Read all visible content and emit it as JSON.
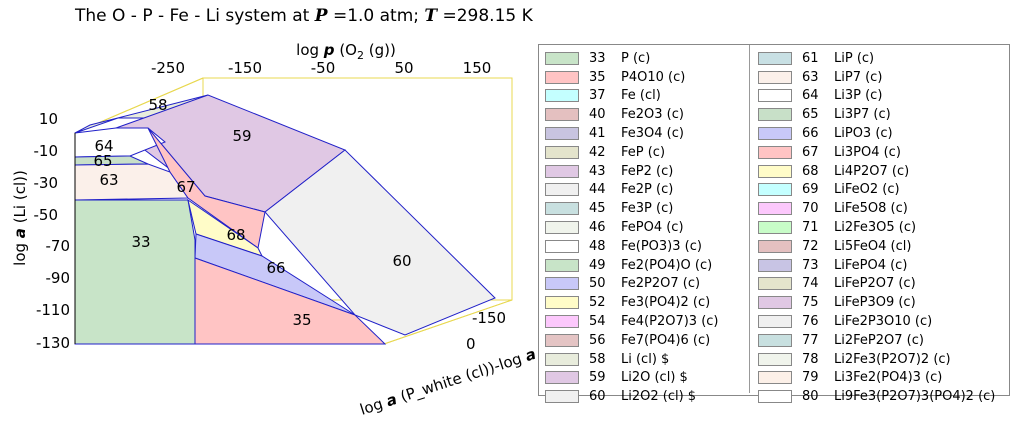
{
  "title": {
    "prefix": "The O - P - Fe - Li system at ",
    "p_symbol": "P",
    "p_value": " =1.0 atm; ",
    "t_symbol": "T",
    "t_value": " =298.15 K"
  },
  "axes": {
    "top_label": "log p (O2 (g))",
    "top_label_parts": {
      "a": "log ",
      "p": "p",
      "b": " (O",
      "sub": "2",
      "c": " (g))"
    },
    "top_ticks": [
      "-250",
      "-150",
      "-50",
      "50",
      "150"
    ],
    "left_label": "log a (Li (cl))",
    "left_ticks": [
      "10",
      "-10",
      "-30",
      "-50",
      "-70",
      "-90",
      "-110",
      "-130"
    ],
    "bottom_label": "log a (P_white (cl))-log a",
    "bottom_ticks": [
      "-150",
      "0"
    ]
  },
  "regions": [
    {
      "id": "58",
      "label": "58",
      "color": "#e8ecdc"
    },
    {
      "id": "59",
      "label": "59",
      "color": "#e0c8e4"
    },
    {
      "id": "64",
      "label": "64",
      "color": "#ffffff"
    },
    {
      "id": "65",
      "label": "65",
      "color": "#c8e0c8"
    },
    {
      "id": "63",
      "label": "63",
      "color": "#fbf0ea"
    },
    {
      "id": "67",
      "label": "67",
      "color": "#ffc4c4"
    },
    {
      "id": "33",
      "label": "33",
      "color": "#c8e4c8"
    },
    {
      "id": "68",
      "label": "68",
      "color": "#fffcc8"
    },
    {
      "id": "66",
      "label": "66",
      "color": "#c8c8f8"
    },
    {
      "id": "60",
      "label": "60",
      "color": "#f0f0f0"
    },
    {
      "id": "35",
      "label": "35",
      "color": "#ffc4c4"
    }
  ],
  "legend": {
    "left": [
      {
        "num": "33",
        "label": "P (c)",
        "color": "#c8e4c8"
      },
      {
        "num": "35",
        "label": "P4O10 (c)",
        "color": "#ffc4c4"
      },
      {
        "num": "37",
        "label": "Fe (cl)",
        "color": "#c4ffff"
      },
      {
        "num": "40",
        "label": "Fe2O3 (c)",
        "color": "#e4c0c0"
      },
      {
        "num": "41",
        "label": "Fe3O4 (c)",
        "color": "#c8c4e0"
      },
      {
        "num": "42",
        "label": "FeP (c)",
        "color": "#e4e4cc"
      },
      {
        "num": "43",
        "label": "FeP2 (c)",
        "color": "#e0c8e4"
      },
      {
        "num": "44",
        "label": "Fe2P (c)",
        "color": "#f0f0f0"
      },
      {
        "num": "45",
        "label": "Fe3P (c)",
        "color": "#c8e0e0"
      },
      {
        "num": "46",
        "label": "FePO4 (c)",
        "color": "#f0f4ec"
      },
      {
        "num": "48",
        "label": "Fe(PO3)3 (c)",
        "color": "#ffffff"
      },
      {
        "num": "49",
        "label": "Fe2(PO4)O (c)",
        "color": "#c8e4c8"
      },
      {
        "num": "50",
        "label": "Fe2P2O7 (c)",
        "color": "#c8c8f8"
      },
      {
        "num": "52",
        "label": "Fe3(PO4)2 (c)",
        "color": "#fffcc8"
      },
      {
        "num": "54",
        "label": "Fe4(P2O7)3 (c)",
        "color": "#fcc8fc"
      },
      {
        "num": "56",
        "label": "Fe7(PO4)6 (c)",
        "color": "#e4c4c4"
      },
      {
        "num": "58",
        "label": "Li (cl)  $",
        "color": "#e8ecdc"
      },
      {
        "num": "59",
        "label": "Li2O (cl)  $",
        "color": "#e0c8e4"
      },
      {
        "num": "60",
        "label": "Li2O2 (cl)  $",
        "color": "#f0f0f0"
      }
    ],
    "right": [
      {
        "num": "61",
        "label": "LiP (c)",
        "color": "#c8e0e4"
      },
      {
        "num": "63",
        "label": "LiP7 (c)",
        "color": "#fbf0ea"
      },
      {
        "num": "64",
        "label": "Li3P (c)",
        "color": "#ffffff"
      },
      {
        "num": "65",
        "label": "Li3P7 (c)",
        "color": "#c8e0c8"
      },
      {
        "num": "66",
        "label": "LiPO3 (c)",
        "color": "#c8c8f8"
      },
      {
        "num": "67",
        "label": "Li3PO4 (c)",
        "color": "#ffc4c4"
      },
      {
        "num": "68",
        "label": "Li4P2O7 (c)",
        "color": "#fffcc8"
      },
      {
        "num": "69",
        "label": "LiFeO2 (c)",
        "color": "#c4ffff"
      },
      {
        "num": "70",
        "label": "LiFe5O8 (c)",
        "color": "#fcc8fc"
      },
      {
        "num": "71",
        "label": "Li2Fe3O5 (c)",
        "color": "#c8fcc8"
      },
      {
        "num": "72",
        "label": "Li5FeO4 (cl)",
        "color": "#e4c0c0"
      },
      {
        "num": "73",
        "label": "LiFePO4 (c)",
        "color": "#c8c4e4"
      },
      {
        "num": "74",
        "label": "LiFeP2O7 (c)",
        "color": "#e4e4cc"
      },
      {
        "num": "75",
        "label": "LiFeP3O9 (c)",
        "color": "#e0c8e4"
      },
      {
        "num": "76",
        "label": "LiFe2P3O10 (c)",
        "color": "#f0f0f0"
      },
      {
        "num": "77",
        "label": "Li2FeP2O7 (c)",
        "color": "#c8e0e0"
      },
      {
        "num": "78",
        "label": "Li2Fe3(P2O7)2 (c)",
        "color": "#f0f4ec"
      },
      {
        "num": "79",
        "label": "Li3Fe2(PO4)3 (c)",
        "color": "#fcf0e8"
      },
      {
        "num": "80",
        "label": "Li9Fe3(P2O7)3(PO4)2 (c)",
        "color": "#ffffff"
      }
    ]
  }
}
